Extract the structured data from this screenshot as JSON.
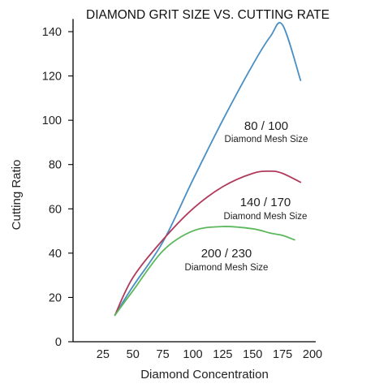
{
  "chart_data": {
    "type": "line",
    "title": "DIAMOND GRIT SIZE VS. CUTTING RATE",
    "xlabel": "Diamond Concentration",
    "ylabel": "Cutting Ratio",
    "xlim": [
      0,
      200
    ],
    "ylim": [
      0,
      145
    ],
    "xticks": [
      "25",
      "50",
      "75",
      "100",
      "125",
      "150",
      "175",
      "200"
    ],
    "yticks": [
      "0",
      "20",
      "40",
      "60",
      "80",
      "100",
      "120",
      "140"
    ],
    "grid": false,
    "legend": "none",
    "series": [
      {
        "color": "#4a8fc4",
        "x": [
          35,
          50,
          75,
          100,
          125,
          150,
          165,
          175,
          190
        ],
        "y": [
          12,
          25,
          45,
          73,
          100,
          125,
          138,
          143,
          118
        ]
      },
      {
        "color": "#b03a5b",
        "x": [
          35,
          50,
          75,
          100,
          125,
          150,
          165,
          175,
          190
        ],
        "y": [
          12,
          29,
          46,
          60,
          70,
          76,
          77,
          76,
          72
        ]
      },
      {
        "color": "#5cb85c",
        "x": [
          35,
          50,
          75,
          100,
          125,
          150,
          165,
          175,
          185
        ],
        "y": [
          12,
          23,
          41,
          50,
          52,
          51,
          49,
          48,
          46
        ]
      }
    ],
    "annotations": [
      {
        "label": "80 / 100",
        "sublabel": "Diamond Mesh Size"
      },
      {
        "label": "140 / 170",
        "sublabel": "Diamond Mesh Size"
      },
      {
        "label": "200 / 230",
        "sublabel": "Diamond Mesh Size"
      }
    ]
  }
}
